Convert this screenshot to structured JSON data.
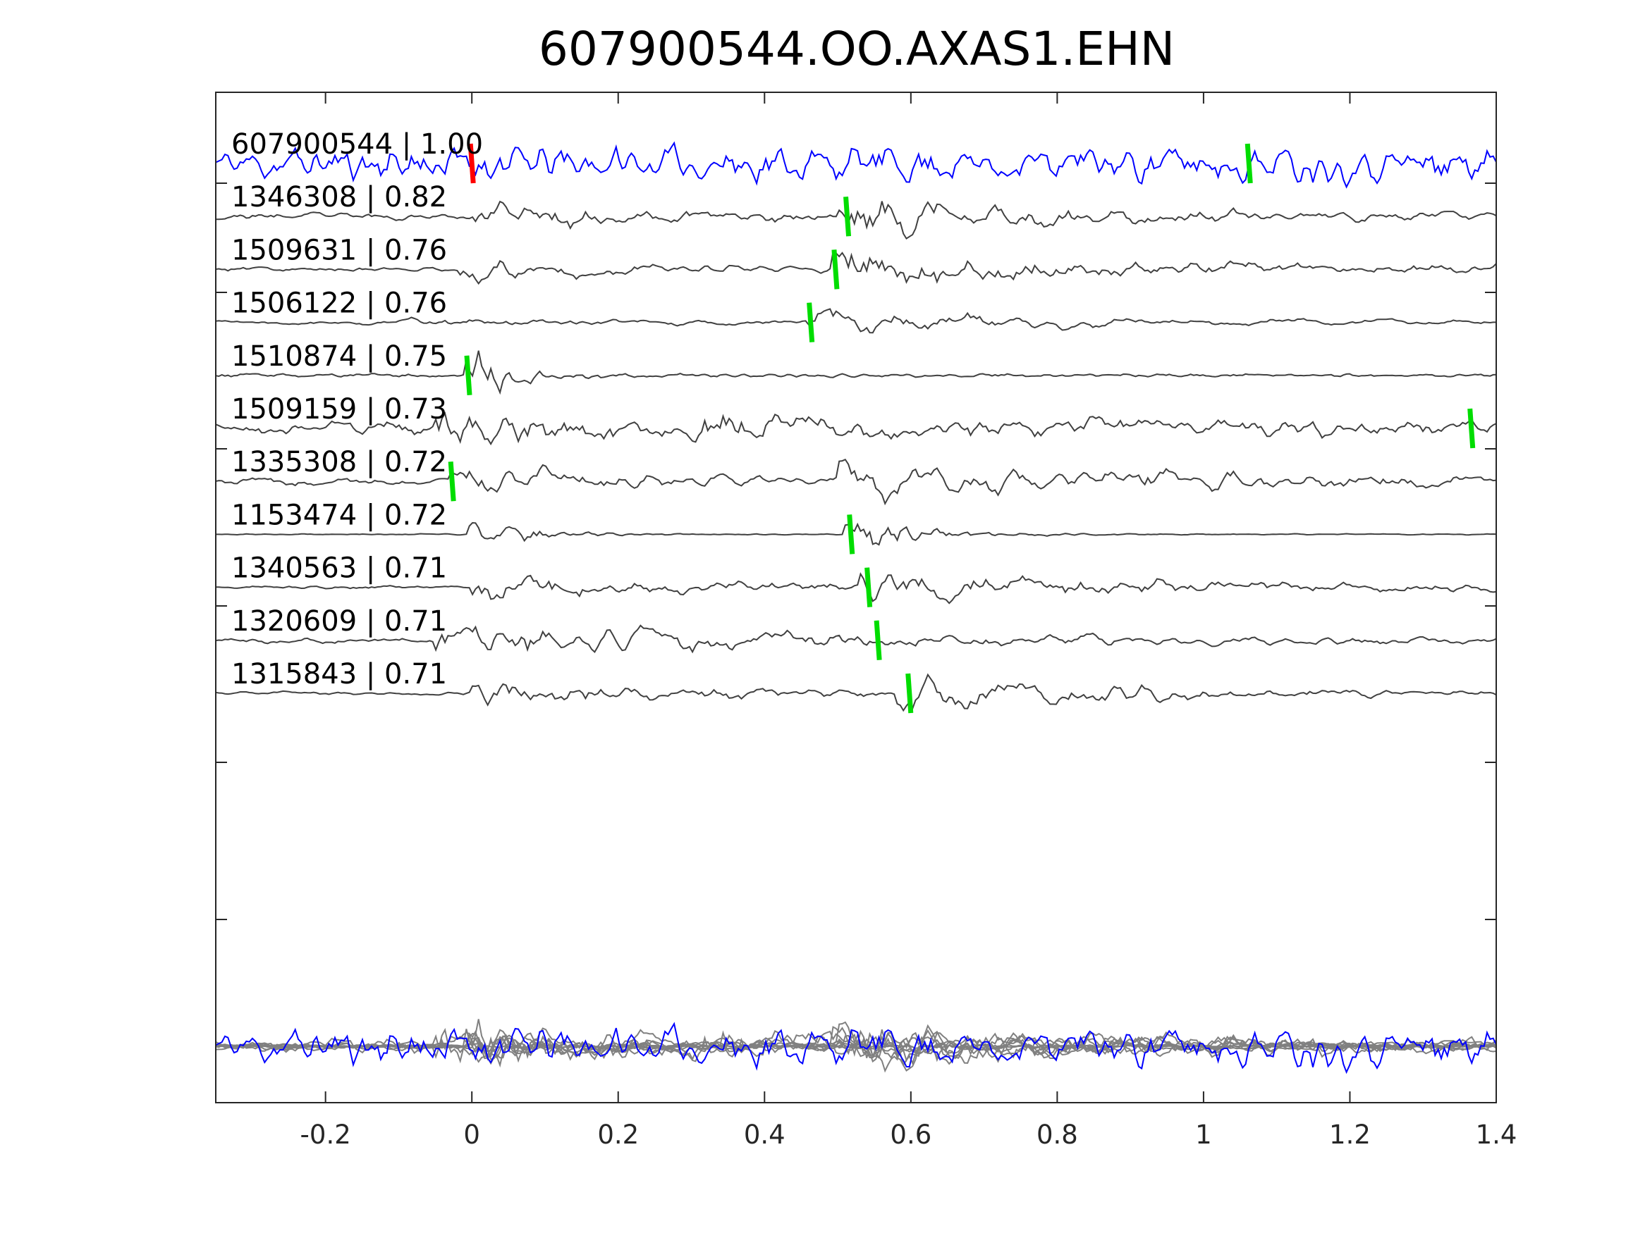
{
  "chart_data": {
    "type": "line",
    "title": "607900544.OO.AXAS1.EHN",
    "xlabel": "",
    "ylabel": "",
    "xlim": [
      -0.35,
      1.4
    ],
    "xticks": [
      -0.2,
      0,
      0.2,
      0.4,
      0.6,
      0.8,
      1,
      1.2,
      1.4
    ],
    "xtick_labels": [
      "-0.2",
      "0",
      "0.2",
      "0.4",
      "0.6",
      "0.8",
      "1",
      "1.2",
      "1.4"
    ],
    "grid": false,
    "colors": {
      "reference": "#0000ff",
      "trace": "#404040",
      "stack": "#808080",
      "pick_reference": "#ff0000",
      "pick": "#00dd00"
    },
    "traces": [
      {
        "id": "607900544",
        "correlation": "1.00",
        "label": "607900544 | 1.00",
        "reference": true,
        "picks": [
          {
            "x": 0.0,
            "color": "red"
          },
          {
            "x": 1.062,
            "color": "green"
          }
        ]
      },
      {
        "id": "1346308",
        "correlation": "0.82",
        "label": "1346308 | 0.82",
        "picks": [
          {
            "x": 0.513,
            "color": "green"
          }
        ]
      },
      {
        "id": "1509631",
        "correlation": "0.76",
        "label": "1509631 | 0.76",
        "picks": [
          {
            "x": 0.497,
            "color": "green"
          }
        ]
      },
      {
        "id": "1506122",
        "correlation": "0.76",
        "label": "1506122 | 0.76",
        "picks": [
          {
            "x": 0.463,
            "color": "green"
          }
        ]
      },
      {
        "id": "1510874",
        "correlation": "0.75",
        "label": "1510874 | 0.75",
        "picks": [
          {
            "x": -0.005,
            "color": "green"
          }
        ]
      },
      {
        "id": "1509159",
        "correlation": "0.73",
        "label": "1509159 | 0.73",
        "picks": [
          {
            "x": 1.366,
            "color": "green"
          }
        ]
      },
      {
        "id": "1335308",
        "correlation": "0.72",
        "label": "1335308 | 0.72",
        "picks": [
          {
            "x": -0.027,
            "color": "green"
          }
        ]
      },
      {
        "id": "1153474",
        "correlation": "0.72",
        "label": "1153474 | 0.72",
        "picks": [
          {
            "x": 0.518,
            "color": "green"
          }
        ]
      },
      {
        "id": "1340563",
        "correlation": "0.71",
        "label": "1340563 | 0.71",
        "picks": [
          {
            "x": 0.542,
            "color": "green"
          }
        ]
      },
      {
        "id": "1320609",
        "correlation": "0.71",
        "label": "1320609 | 0.71",
        "picks": [
          {
            "x": 0.555,
            "color": "green"
          }
        ]
      },
      {
        "id": "1315843",
        "correlation": "0.71",
        "label": "1315843 | 0.71",
        "picks": [
          {
            "x": 0.598,
            "color": "green"
          }
        ]
      }
    ],
    "overlay": {
      "description_in_image": false
    }
  }
}
